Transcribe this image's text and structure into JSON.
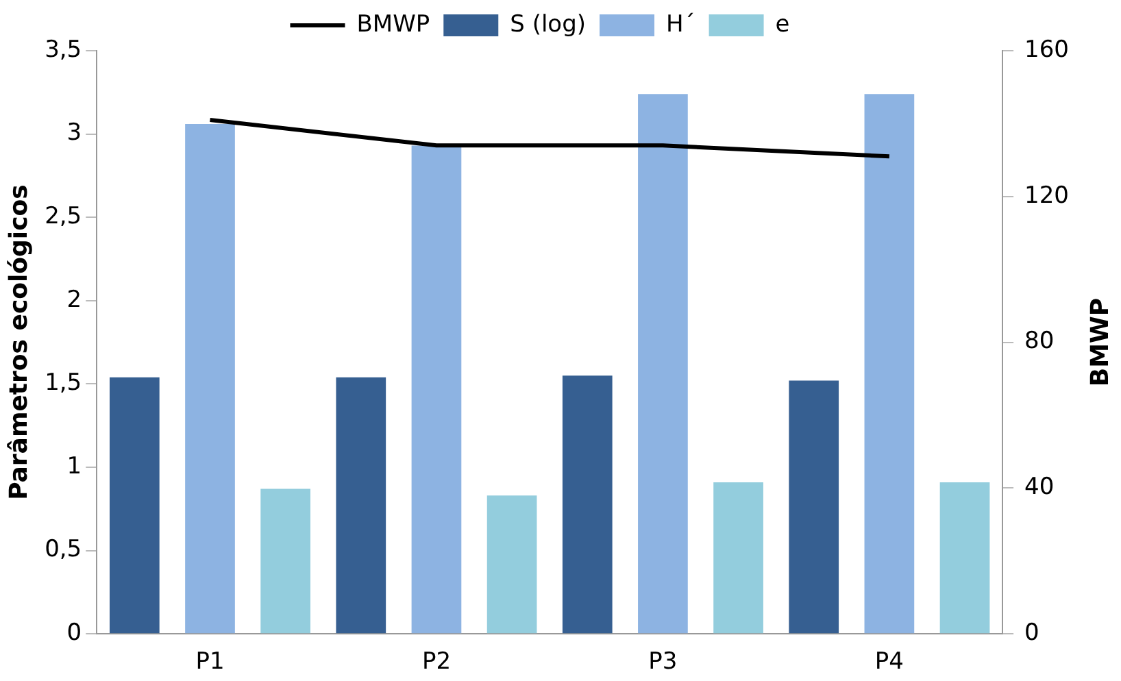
{
  "chart_data": {
    "type": "bar",
    "categories": [
      "P1",
      "P2",
      "P3",
      "P4"
    ],
    "ylabel": "Parâmetros ecológicos",
    "y2label": "BMWP",
    "series": [
      {
        "name": "S (log)",
        "color": "#365f91",
        "values": [
          1.54,
          1.54,
          1.55,
          1.52
        ]
      },
      {
        "name": "H´",
        "color": "#8db3e2",
        "values": [
          3.06,
          2.93,
          3.24,
          3.24
        ]
      },
      {
        "name": "e",
        "color": "#93cddd",
        "values": [
          0.87,
          0.83,
          0.91,
          0.91
        ]
      },
      {
        "name": "BMWP",
        "type": "line",
        "axis": "y2",
        "color": "#000000",
        "values": [
          141,
          134,
          134,
          131
        ]
      }
    ],
    "ylim": [
      0,
      3.5
    ],
    "yticks": [
      {
        "value": 0,
        "label": "0"
      },
      {
        "value": 0.5,
        "label": "0,5"
      },
      {
        "value": 1,
        "label": "1"
      },
      {
        "value": 1.5,
        "label": "1,5"
      },
      {
        "value": 2,
        "label": "2"
      },
      {
        "value": 2.5,
        "label": "2,5"
      },
      {
        "value": 3,
        "label": "3"
      },
      {
        "value": 3.5,
        "label": "3,5"
      }
    ],
    "y2lim": [
      0,
      160
    ],
    "y2ticks": [
      0,
      40,
      80,
      120,
      160
    ],
    "grid": false,
    "legend": "top",
    "marker": "none",
    "line_style": "solid"
  }
}
